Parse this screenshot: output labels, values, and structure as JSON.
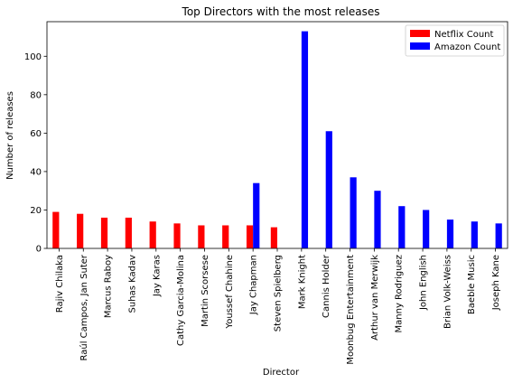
{
  "chart_data": {
    "type": "bar",
    "title": "Top Directors with the most releases",
    "xlabel": "Director",
    "ylabel": "Number of releases",
    "ylim": [
      0,
      118
    ],
    "yticks": [
      0,
      20,
      40,
      60,
      80,
      100
    ],
    "grid": false,
    "legend_position": "top-right",
    "categories": [
      "Rajiv Chilaka",
      "Raúl Campos, Jan Suter",
      "Marcus Raboy",
      "Suhas Kadav",
      "Jay Karas",
      "Cathy Garcia-Molina",
      "Martin Scorsese",
      "Youssef Chahine",
      "Jay Chapman",
      "Steven Spielberg",
      "Mark Knight",
      "Cannis Holder",
      "Moonbug Entertainment",
      "Arthur van Merwijk",
      "Manny Rodriguez",
      "John English",
      "Brian Volk-Weiss",
      "Baeble Music",
      "Joseph Kane"
    ],
    "series": [
      {
        "name": "Netflix Count",
        "color": "#ff0000",
        "values": [
          19,
          18,
          16,
          16,
          14,
          13,
          12,
          12,
          12,
          11,
          0,
          0,
          0,
          0,
          0,
          0,
          0,
          0,
          0
        ]
      },
      {
        "name": "Amazon Count",
        "color": "#0000ff",
        "values": [
          0,
          0,
          0,
          0,
          0,
          0,
          0,
          0,
          34,
          0,
          113,
          61,
          37,
          30,
          22,
          20,
          15,
          14,
          13
        ]
      }
    ]
  }
}
